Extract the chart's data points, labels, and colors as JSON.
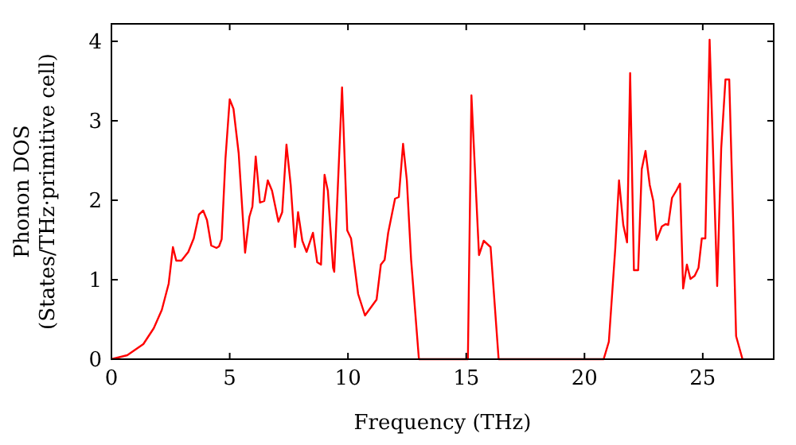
{
  "chart_data": {
    "type": "line",
    "xlabel": "Frequency (THz)",
    "ylabel": "Phonon DOS\n(States/THz·primitive cell)",
    "xlim": [
      0,
      28
    ],
    "ylim": [
      0,
      4.22
    ],
    "xticks": [
      0,
      5,
      10,
      15,
      20,
      25
    ],
    "yticks": [
      0,
      1,
      2,
      3,
      4
    ],
    "grid": false,
    "marker": "none",
    "line_style": "solid",
    "series": [
      {
        "color": "#ff0000",
        "x": [
          0,
          0.67,
          1.35,
          1.79,
          2.13,
          2.42,
          2.6,
          2.74,
          2.96,
          3.25,
          3.48,
          3.7,
          3.88,
          4.04,
          4.22,
          4.44,
          4.55,
          4.66,
          4.82,
          5.0,
          5.16,
          5.38,
          5.65,
          5.83,
          5.96,
          6.1,
          6.28,
          6.46,
          6.61,
          6.79,
          7.06,
          7.22,
          7.4,
          7.58,
          7.76,
          7.89,
          8.07,
          8.25,
          8.52,
          8.7,
          8.86,
          9.01,
          9.15,
          9.37,
          9.42,
          9.75,
          9.97,
          10.13,
          10.43,
          10.72,
          11.21,
          11.39,
          11.55,
          11.7,
          11.99,
          12.15,
          12.33,
          12.49,
          12.67,
          13.0,
          15.07,
          15.22,
          15.54,
          15.74,
          16.03,
          16.37,
          20.81,
          21.03,
          21.3,
          21.46,
          21.64,
          21.8,
          21.93,
          22.09,
          22.27,
          22.42,
          22.58,
          22.76,
          22.91,
          23.05,
          23.27,
          23.43,
          23.54,
          23.7,
          23.88,
          24.04,
          24.17,
          24.33,
          24.48,
          24.66,
          24.82,
          24.96,
          25.11,
          25.29,
          25.61,
          25.78,
          25.96,
          26.12,
          26.28,
          26.41,
          26.68
        ],
        "values": [
          0,
          0.05,
          0.19,
          0.39,
          0.62,
          0.95,
          1.41,
          1.24,
          1.24,
          1.35,
          1.52,
          1.82,
          1.87,
          1.75,
          1.43,
          1.4,
          1.42,
          1.51,
          2.52,
          3.27,
          3.15,
          2.59,
          1.34,
          1.79,
          1.92,
          2.55,
          1.97,
          1.99,
          2.25,
          2.12,
          1.73,
          1.85,
          2.7,
          2.19,
          1.41,
          1.85,
          1.49,
          1.35,
          1.59,
          1.22,
          1.19,
          2.32,
          2.12,
          1.15,
          1.1,
          3.42,
          1.62,
          1.52,
          0.82,
          0.55,
          0.75,
          1.19,
          1.25,
          1.59,
          2.02,
          2.04,
          2.71,
          2.25,
          1.25,
          0,
          0,
          3.32,
          1.31,
          1.49,
          1.41,
          0,
          0,
          0.22,
          1.39,
          2.25,
          1.69,
          1.47,
          3.6,
          1.12,
          1.12,
          2.39,
          2.62,
          2.19,
          1.99,
          1.5,
          1.67,
          1.7,
          1.69,
          2.03,
          2.12,
          2.21,
          0.89,
          1.19,
          1.01,
          1.05,
          1.15,
          1.52,
          1.52,
          4.02,
          0.92,
          2.65,
          3.52,
          3.52,
          1.79,
          0.29,
          0
        ]
      }
    ]
  }
}
